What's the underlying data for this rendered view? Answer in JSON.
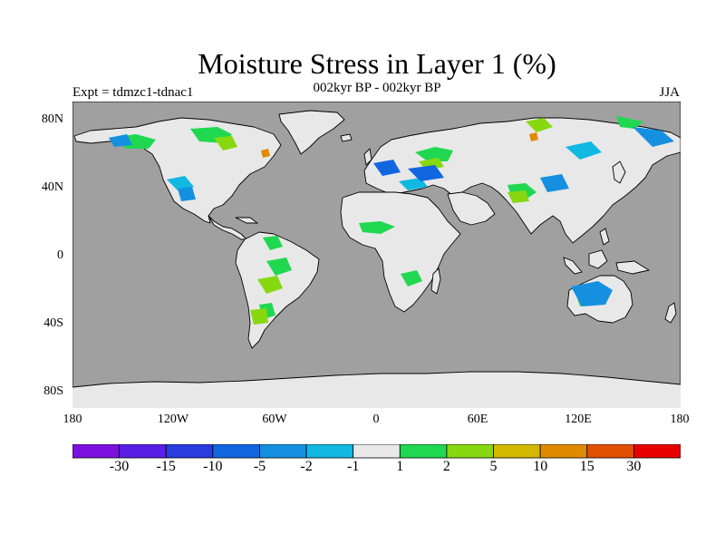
{
  "title": "Moisture Stress in Layer 1 (%)",
  "subtitle": "002kyr BP - 002kyr BP",
  "expt_label": "Expt = tdmzc1-tdnac1",
  "season": "JJA",
  "lat_labels": [
    "80N",
    "40N",
    "0",
    "40S",
    "80S"
  ],
  "lon_labels": [
    "180",
    "120W",
    "60W",
    "0",
    "60E",
    "120E",
    "180"
  ],
  "colorbar": {
    "labels": [
      "-30",
      "-15",
      "-10",
      "-5",
      "-2",
      "-1",
      "1",
      "2",
      "5",
      "10",
      "15",
      "30"
    ],
    "colors": [
      "#7c10e0",
      "#5a1ee6",
      "#2a3be0",
      "#1266e0",
      "#1590e0",
      "#10b8e2",
      "#e8e8e8",
      "#20d850",
      "#88d810",
      "#d4b800",
      "#e08a00",
      "#e05000",
      "#e80000"
    ]
  },
  "colors": {
    "ocean": "#a0a0a0",
    "land_neutral": "#e8e8e8",
    "coast": "#000000"
  }
}
